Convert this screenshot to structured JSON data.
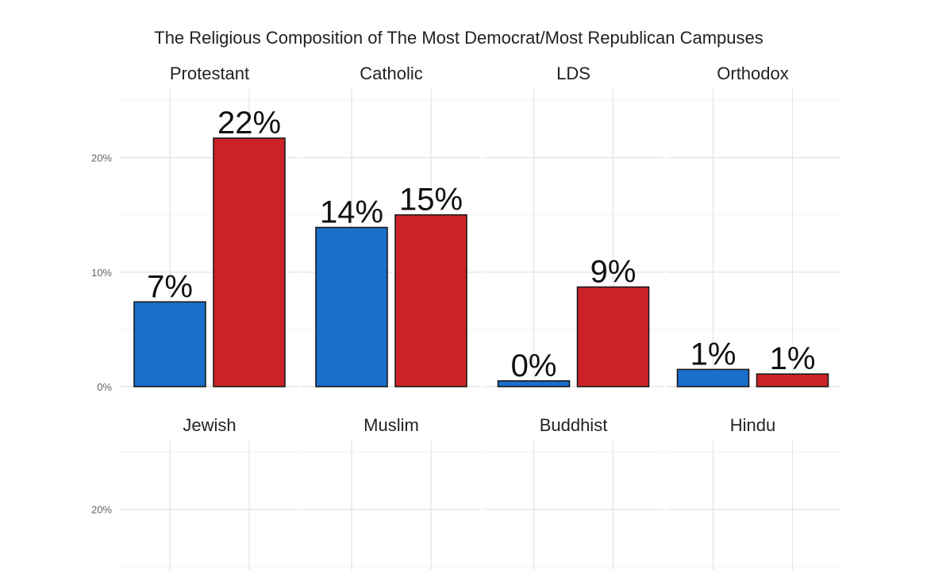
{
  "chart_data": {
    "type": "bar",
    "title": "The Religious Composition of The Most Democrat/Most Republican Campuses",
    "xlabel": "",
    "ylabel": "",
    "ylim": [
      0,
      26
    ],
    "y_ticks": [
      0,
      10,
      20
    ],
    "y_tick_labels": [
      "0%",
      "10%",
      "20%"
    ],
    "grid": true,
    "series": [
      {
        "name": "Most Democrat",
        "color": "#1a6fca"
      },
      {
        "name": "Most Republican",
        "color": "#cc2227"
      }
    ],
    "facets": [
      {
        "label": "Protestant",
        "values": [
          7.4,
          21.7
        ],
        "labels": [
          "7%",
          "22%"
        ]
      },
      {
        "label": "Catholic",
        "values": [
          13.9,
          15.0
        ],
        "labels": [
          "14%",
          "15%"
        ]
      },
      {
        "label": "LDS",
        "values": [
          0.5,
          8.7
        ],
        "labels": [
          "0%",
          "9%"
        ]
      },
      {
        "label": "Orthodox",
        "values": [
          1.5,
          1.1
        ],
        "labels": [
          "1%",
          "1%"
        ]
      },
      {
        "label": "Jewish",
        "values": [],
        "labels": []
      },
      {
        "label": "Muslim",
        "values": [],
        "labels": []
      },
      {
        "label": "Buddhist",
        "values": [],
        "labels": []
      },
      {
        "label": "Hindu",
        "values": [],
        "labels": []
      }
    ]
  }
}
